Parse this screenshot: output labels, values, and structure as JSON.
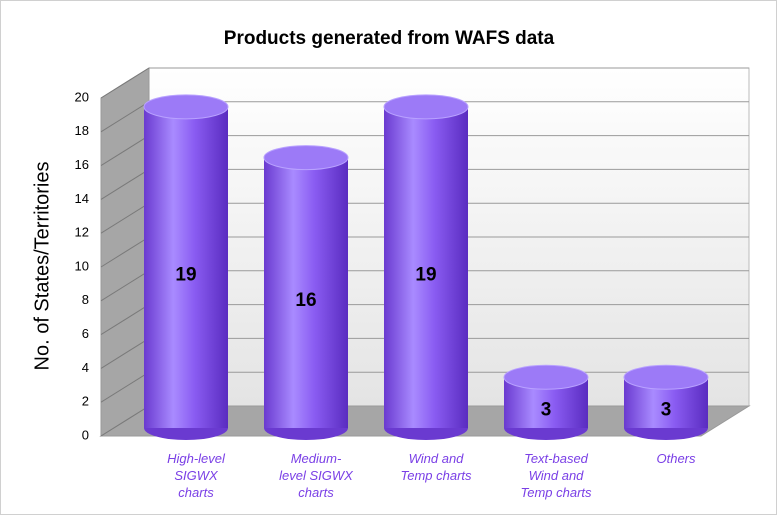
{
  "chart_data": {
    "type": "bar3d",
    "title": "Products generated from WAFS data",
    "y_label": "No. of States/Territories",
    "categories": [
      "High-level SIGWX charts",
      "Medium-level SIGWX charts",
      "Wind and Temp charts",
      "Text-based Wind and Temp charts",
      "Others"
    ],
    "values": [
      19,
      16,
      19,
      3,
      3
    ],
    "color": "#8a5cf2",
    "ylim": [
      0,
      20
    ],
    "yticks": [
      0,
      2,
      4,
      6,
      8,
      10,
      12,
      14,
      16,
      18,
      20
    ],
    "grid": true
  }
}
